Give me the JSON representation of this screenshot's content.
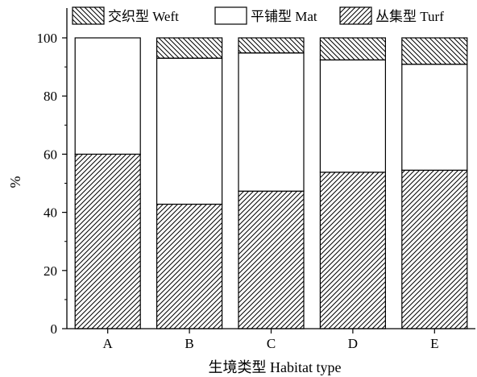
{
  "chart_data": {
    "type": "bar",
    "stacked": true,
    "categories": [
      "A",
      "B",
      "C",
      "D",
      "E"
    ],
    "series": [
      {
        "name": "丛集型 Turf",
        "pattern": "diag-right",
        "values": [
          60.0,
          42.8,
          47.3,
          53.8,
          54.5
        ]
      },
      {
        "name": "平铺型 Mat",
        "pattern": "none",
        "values": [
          40.0,
          50.2,
          47.5,
          38.6,
          36.4
        ]
      },
      {
        "name": "交织型 Weft",
        "pattern": "diag-left",
        "values": [
          0.0,
          7.0,
          5.2,
          7.6,
          9.1
        ]
      }
    ],
    "legend_order": [
      "交织型 Weft",
      "平铺型 Mat",
      "丛集型 Turf"
    ],
    "legend_position": "top",
    "xlabel": "生境类型 Habitat type",
    "ylabel": "%",
    "ylim": [
      0,
      100
    ],
    "yticks": [
      0,
      20,
      40,
      60,
      80,
      100
    ],
    "grid": false
  }
}
